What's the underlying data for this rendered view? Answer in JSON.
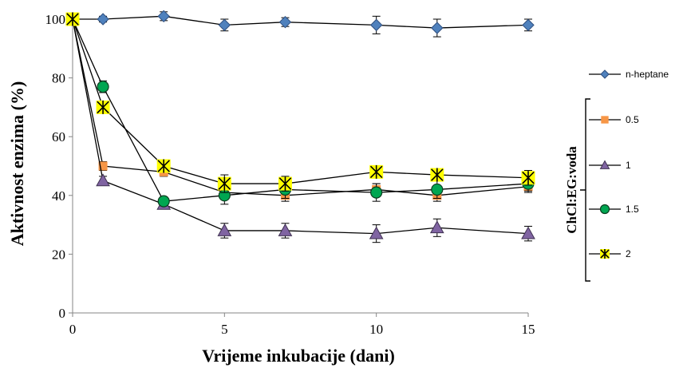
{
  "chart_data": {
    "type": "line",
    "xlabel": "Vrijeme inkubacije (dani)",
    "ylabel": "Aktivnost enzima  (%)",
    "xlim": [
      0,
      15
    ],
    "ylim": [
      0,
      100
    ],
    "xticks": [
      0,
      5,
      10,
      15
    ],
    "yticks": [
      0,
      20,
      40,
      60,
      80,
      100
    ],
    "x": [
      0,
      1,
      3,
      5,
      7,
      10,
      12,
      15
    ],
    "grid": false,
    "legend_position": "right",
    "legend_group_label": "ChCl:EG:voda",
    "series": [
      {
        "name": "n-heptane",
        "marker": "diamond",
        "color": "#4F81BD",
        "values": [
          100,
          100,
          101,
          98,
          99,
          98,
          97,
          98
        ],
        "errors": [
          0,
          1,
          1.5,
          2,
          1.5,
          3,
          3,
          2
        ]
      },
      {
        "name": "0.5",
        "marker": "square",
        "color": "#F79646",
        "values": [
          100,
          50,
          48,
          41,
          40,
          42,
          40,
          43
        ],
        "errors": [
          0,
          1.5,
          1.5,
          2,
          2,
          2,
          2,
          2
        ]
      },
      {
        "name": "1",
        "marker": "triangle",
        "color": "#8064A2",
        "values": [
          100,
          45,
          37,
          28,
          28,
          27,
          29,
          27
        ],
        "errors": [
          0,
          1.5,
          1.5,
          2.5,
          2.5,
          3,
          3,
          2.5
        ]
      },
      {
        "name": "1.5",
        "marker": "circle",
        "color": "#00A651",
        "values": [
          100,
          77,
          38,
          40,
          42,
          41,
          42,
          44
        ],
        "errors": [
          0,
          2,
          1.5,
          3,
          3,
          3,
          3,
          2.5
        ]
      },
      {
        "name": "2",
        "marker": "star",
        "color": "#FFFF00",
        "values": [
          100,
          70,
          50,
          44,
          44,
          48,
          47,
          46
        ],
        "errors": [
          0,
          1,
          1.5,
          3,
          2.5,
          2,
          2,
          2.5
        ]
      }
    ]
  }
}
